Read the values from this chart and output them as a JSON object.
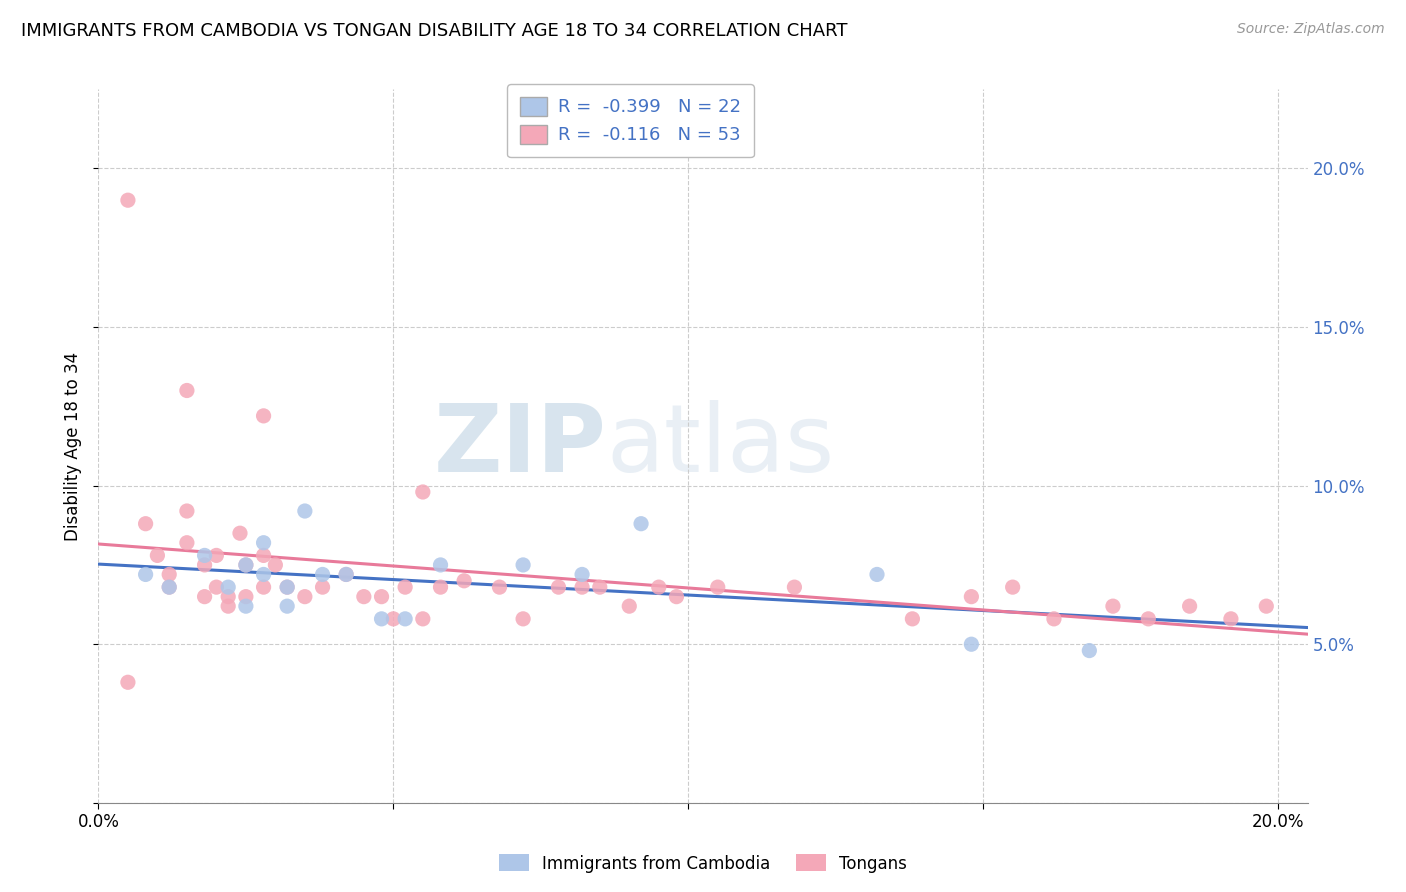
{
  "title": "IMMIGRANTS FROM CAMBODIA VS TONGAN DISABILITY AGE 18 TO 34 CORRELATION CHART",
  "source": "Source: ZipAtlas.com",
  "ylabel": "Disability Age 18 to 34",
  "r_cambodia": -0.399,
  "n_cambodia": 22,
  "r_tongan": -0.116,
  "n_tongan": 53,
  "color_cambodia": "#aec6e8",
  "color_tongan": "#f4a8b8",
  "color_cambodia_line": "#4472c4",
  "color_tongan_line": "#e87a9a",
  "watermark_zip": "ZIP",
  "watermark_atlas": "atlas",
  "xlim": [
    0.0,
    0.205
  ],
  "ylim": [
    0.0,
    0.225
  ],
  "cambodia_scatter_x": [
    0.008,
    0.012,
    0.018,
    0.022,
    0.025,
    0.025,
    0.028,
    0.028,
    0.032,
    0.032,
    0.035,
    0.038,
    0.042,
    0.048,
    0.052,
    0.058,
    0.072,
    0.082,
    0.092,
    0.132,
    0.148,
    0.168
  ],
  "cambodia_scatter_y": [
    0.072,
    0.068,
    0.078,
    0.068,
    0.075,
    0.062,
    0.072,
    0.082,
    0.068,
    0.062,
    0.092,
    0.072,
    0.072,
    0.058,
    0.058,
    0.075,
    0.075,
    0.072,
    0.088,
    0.072,
    0.05,
    0.048
  ],
  "tongan_scatter_x": [
    0.005,
    0.008,
    0.01,
    0.012,
    0.012,
    0.015,
    0.015,
    0.018,
    0.018,
    0.02,
    0.02,
    0.022,
    0.022,
    0.024,
    0.025,
    0.025,
    0.028,
    0.028,
    0.03,
    0.032,
    0.035,
    0.038,
    0.042,
    0.045,
    0.048,
    0.05,
    0.052,
    0.055,
    0.058,
    0.062,
    0.068,
    0.072,
    0.078,
    0.082,
    0.085,
    0.09,
    0.095,
    0.098,
    0.105,
    0.118,
    0.138,
    0.148,
    0.155,
    0.162,
    0.172,
    0.178,
    0.185,
    0.192,
    0.198,
    0.005,
    0.015,
    0.028,
    0.055
  ],
  "tongan_scatter_y": [
    0.038,
    0.088,
    0.078,
    0.072,
    0.068,
    0.092,
    0.082,
    0.075,
    0.065,
    0.068,
    0.078,
    0.065,
    0.062,
    0.085,
    0.075,
    0.065,
    0.078,
    0.068,
    0.075,
    0.068,
    0.065,
    0.068,
    0.072,
    0.065,
    0.065,
    0.058,
    0.068,
    0.058,
    0.068,
    0.07,
    0.068,
    0.058,
    0.068,
    0.068,
    0.068,
    0.062,
    0.068,
    0.065,
    0.068,
    0.068,
    0.058,
    0.065,
    0.068,
    0.058,
    0.062,
    0.058,
    0.062,
    0.058,
    0.062,
    0.19,
    0.13,
    0.122,
    0.098
  ]
}
